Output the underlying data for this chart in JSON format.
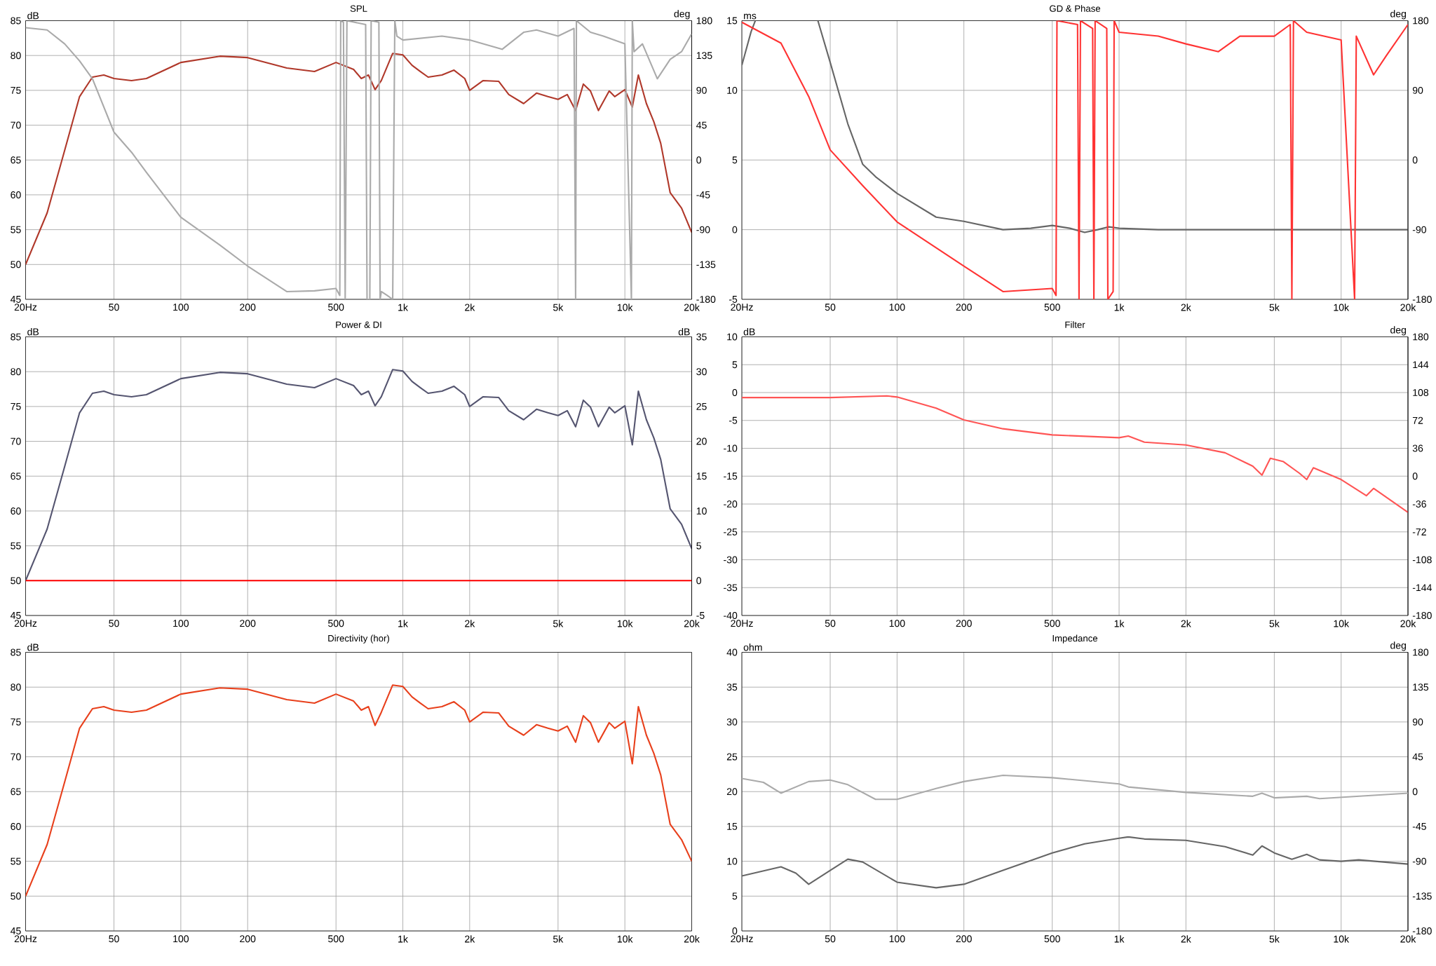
{
  "chart_data": [
    {
      "type": "line",
      "title": "SPL",
      "ylabel": "dB",
      "y2label": "deg",
      "log": "x",
      "grid": true,
      "xlim": [
        20,
        20000
      ],
      "ylim": [
        45,
        85
      ],
      "y2lim": [
        -180,
        180
      ],
      "xticks": [
        {
          "value": 20,
          "label": "20Hz"
        },
        50,
        100,
        200,
        500,
        {
          "value": 1000,
          "label": "1k"
        },
        {
          "value": 2000,
          "label": "2k"
        },
        {
          "value": 5000,
          "label": "5k"
        },
        {
          "value": 10000,
          "label": "10k"
        },
        {
          "value": 20000,
          "label": "20k"
        }
      ],
      "yticks": [
        45,
        50,
        55,
        60,
        65,
        70,
        75,
        80,
        85
      ],
      "y2ticks": [
        -180,
        -135,
        -90,
        -45,
        0,
        45,
        90,
        135,
        180
      ],
      "series": [
        {
          "color": "#b0382a",
          "x": [
            20,
            25,
            30,
            35,
            40,
            45,
            50,
            60,
            70,
            100,
            150,
            200,
            300,
            400,
            500,
            600,
            650,
            700,
            750,
            800,
            900,
            1000,
            1100,
            1200,
            1300,
            1500,
            1700,
            1900,
            2000,
            2300,
            2700,
            3000,
            3500,
            4000,
            4500,
            5000,
            5500,
            6000,
            6500,
            7000,
            7600,
            8500,
            9000,
            10000,
            10800,
            11500,
            12500,
            13500,
            14500,
            16000,
            18000,
            20000
          ],
          "values": [
            50.0,
            57.4,
            66.4,
            74.1,
            76.9,
            77.2,
            76.7,
            76.4,
            76.7,
            79.0,
            79.9,
            79.7,
            78.2,
            77.7,
            79.0,
            78.0,
            76.7,
            77.2,
            75.1,
            76.4,
            80.3,
            80.1,
            78.6,
            77.7,
            76.9,
            77.2,
            77.9,
            76.7,
            75.0,
            76.4,
            76.3,
            74.4,
            73.1,
            74.6,
            74.1,
            73.7,
            74.4,
            72.1,
            75.9,
            74.9,
            72.1,
            74.9,
            74.1,
            75.1,
            72.6,
            77.2,
            73.1,
            70.5,
            67.4,
            60.3,
            58.1,
            54.6
          ]
        },
        {
          "color": "#aaaaaa",
          "axis": "y2",
          "x": [
            20,
            25,
            30,
            35,
            40,
            50,
            60,
            70,
            100,
            150,
            200,
            300,
            400,
            500,
            520,
            525,
            540,
            550,
            560,
            680,
            690,
            710,
            720,
            780,
            790,
            800,
            850,
            900,
            920,
            940,
            1000,
            1500,
            2000,
            2800,
            3500,
            4000,
            5000,
            5900,
            6000,
            6050,
            7000,
            8000,
            10000,
            10700,
            10800,
            11000,
            12000,
            14000,
            16000,
            18000,
            20000
          ],
          "values": [
            171,
            168,
            150,
            128,
            105,
            36,
            10,
            -16,
            -74,
            -110,
            -137,
            -170,
            -169,
            -166,
            -175,
            180,
            178,
            -180,
            180,
            175,
            -180,
            -180,
            180,
            178,
            -180,
            -170,
            -175,
            -180,
            180,
            160,
            155,
            160,
            155,
            143,
            165,
            168,
            160,
            170,
            -180,
            180,
            165,
            160,
            150,
            -180,
            180,
            140,
            150,
            105,
            130,
            140,
            163
          ]
        }
      ]
    },
    {
      "type": "line",
      "title": "GD & Phase",
      "ylabel": "ms",
      "y2label": "deg",
      "log": "x",
      "grid": true,
      "xlim": [
        20,
        20000
      ],
      "ylim": [
        -5,
        15
      ],
      "y2lim": [
        -180,
        180
      ],
      "xticks": [
        {
          "value": 20,
          "label": "20Hz"
        },
        50,
        100,
        200,
        500,
        {
          "value": 1000,
          "label": "1k"
        },
        {
          "value": 2000,
          "label": "2k"
        },
        {
          "value": 5000,
          "label": "5k"
        },
        {
          "value": 10000,
          "label": "10k"
        },
        {
          "value": 20000,
          "label": "20k"
        }
      ],
      "yticks": [
        -5,
        0,
        5,
        10,
        15
      ],
      "y2ticks": [
        -180,
        -90,
        0,
        90,
        180
      ],
      "series": [
        {
          "color": "#666666",
          "x": [
            20,
            22,
            23,
            23.5,
            44,
            50,
            60,
            70,
            80,
            100,
            150,
            200,
            300,
            400,
            500,
            600,
            700,
            800,
            900,
            1000,
            1500,
            2000,
            5000,
            10000,
            20000
          ],
          "values": [
            11.8,
            14.2,
            15,
            null,
            15,
            12,
            7.6,
            4.7,
            3.8,
            2.6,
            0.9,
            0.6,
            0,
            0.1,
            0.3,
            0.1,
            -0.2,
            0,
            0.2,
            0.1,
            0,
            0,
            0,
            0,
            0
          ]
        },
        {
          "color": "#ff3333",
          "axis": "y2",
          "x": [
            20,
            30,
            40,
            50,
            70,
            100,
            200,
            300,
            500,
            520,
            525,
            650,
            660,
            670,
            760,
            770,
            780,
            880,
            890,
            940,
            950,
            1000,
            1500,
            2000,
            2800,
            3500,
            5000,
            5900,
            6000,
            6100,
            7000,
            10000,
            11500,
            11700,
            14000,
            16000,
            20000
          ],
          "values": [
            178,
            151,
            82,
            13,
            -33,
            -80,
            -137,
            -170,
            -166,
            -175,
            180,
            175,
            -180,
            180,
            170,
            -180,
            180,
            170,
            -180,
            -170,
            180,
            165,
            160,
            150,
            140,
            160,
            160,
            175,
            -180,
            180,
            165,
            155,
            -180,
            160,
            110,
            135,
            175
          ]
        }
      ]
    },
    {
      "type": "line",
      "title": "Power & DI",
      "ylabel": "dB",
      "y2label": "dB",
      "log": "x",
      "grid": true,
      "xlim": [
        20,
        20000
      ],
      "ylim": [
        45,
        85
      ],
      "y2lim": [
        -5,
        35
      ],
      "xticks": [
        {
          "value": 20,
          "label": "20Hz"
        },
        50,
        100,
        200,
        500,
        {
          "value": 1000,
          "label": "1k"
        },
        {
          "value": 2000,
          "label": "2k"
        },
        {
          "value": 5000,
          "label": "5k"
        },
        {
          "value": 10000,
          "label": "10k"
        },
        {
          "value": 20000,
          "label": "20k"
        }
      ],
      "yticks": [
        45,
        50,
        55,
        60,
        65,
        70,
        75,
        80,
        85
      ],
      "y2ticks": [
        -5,
        0,
        5,
        10,
        15,
        20,
        25,
        30,
        35
      ],
      "series": [
        {
          "color": "#555570",
          "x": [
            20,
            25,
            30,
            35,
            40,
            45,
            50,
            60,
            70,
            100,
            150,
            200,
            300,
            400,
            500,
            600,
            650,
            700,
            750,
            800,
            900,
            1000,
            1100,
            1200,
            1300,
            1500,
            1700,
            1900,
            2000,
            2300,
            2700,
            3000,
            3500,
            4000,
            4500,
            5000,
            5500,
            6000,
            6500,
            7000,
            7600,
            8500,
            9000,
            10000,
            10800,
            11500,
            12500,
            13500,
            14500,
            16000,
            18000,
            20000
          ],
          "values": [
            50.0,
            57.4,
            66.4,
            74.1,
            76.9,
            77.2,
            76.7,
            76.4,
            76.7,
            79.0,
            79.9,
            79.7,
            78.2,
            77.7,
            79.0,
            78.0,
            76.7,
            77.2,
            75.1,
            76.4,
            80.3,
            80.1,
            78.6,
            77.7,
            76.9,
            77.2,
            77.9,
            76.7,
            75.0,
            76.4,
            76.3,
            74.4,
            73.1,
            74.6,
            74.1,
            73.7,
            74.4,
            72.1,
            75.9,
            74.9,
            72.1,
            74.9,
            74.1,
            75.1,
            69.5,
            77.2,
            73.1,
            70.5,
            67.4,
            60.3,
            58.1,
            54.6
          ]
        },
        {
          "color": "#ff0000",
          "axis": "y2",
          "x": [
            20,
            20000
          ],
          "values": [
            0,
            0
          ]
        }
      ]
    },
    {
      "type": "line",
      "title": "Filter",
      "ylabel": "dB",
      "y2label": "deg",
      "log": "x",
      "grid": true,
      "xlim": [
        20,
        20000
      ],
      "ylim": [
        -40,
        10
      ],
      "y2lim": [
        -180,
        180
      ],
      "xticks": [
        {
          "value": 20,
          "label": "20Hz"
        },
        50,
        100,
        200,
        500,
        {
          "value": 1000,
          "label": "1k"
        },
        {
          "value": 2000,
          "label": "2k"
        },
        {
          "value": 5000,
          "label": "5k"
        },
        {
          "value": 10000,
          "label": "10k"
        },
        {
          "value": 20000,
          "label": "20k"
        }
      ],
      "yticks": [
        -40,
        -35,
        -30,
        -25,
        -20,
        -15,
        -10,
        -5,
        0,
        5,
        10
      ],
      "y2ticks": [
        -180,
        -144,
        -108,
        -72,
        -36,
        0,
        36,
        72,
        108,
        144,
        180
      ],
      "series": [
        {
          "color": "#ff5555",
          "x": [
            20,
            50,
            90,
            100,
            150,
            200,
            300,
            500,
            1000,
            1100,
            1300,
            2000,
            3000,
            4000,
            4400,
            4800,
            5500,
            6500,
            7000,
            7500,
            10000,
            13000,
            14000,
            20000
          ],
          "values": [
            -0.9,
            -0.9,
            -0.6,
            -0.8,
            -2.8,
            -4.9,
            -6.5,
            -7.6,
            -8.1,
            -7.8,
            -8.9,
            -9.4,
            -10.8,
            -13.2,
            -14.8,
            -11.8,
            -12.4,
            -14.5,
            -15.6,
            -13.5,
            -15.6,
            -18.5,
            -17.2,
            -21.5
          ]
        }
      ]
    },
    {
      "type": "line",
      "title": "Directivity (hor)",
      "ylabel": "dB",
      "log": "x",
      "grid": true,
      "xlim": [
        20,
        20000
      ],
      "ylim": [
        45,
        85
      ],
      "xticks": [
        {
          "value": 20,
          "label": "20Hz"
        },
        50,
        100,
        200,
        500,
        {
          "value": 1000,
          "label": "1k"
        },
        {
          "value": 2000,
          "label": "2k"
        },
        {
          "value": 5000,
          "label": "5k"
        },
        {
          "value": 10000,
          "label": "10k"
        },
        {
          "value": 20000,
          "label": "20k"
        }
      ],
      "yticks": [
        45,
        50,
        55,
        60,
        65,
        70,
        75,
        80,
        85
      ],
      "series": [
        {
          "color": "#e8401c",
          "x": [
            20,
            25,
            30,
            35,
            40,
            45,
            50,
            60,
            70,
            100,
            150,
            200,
            300,
            400,
            500,
            600,
            650,
            700,
            750,
            800,
            900,
            1000,
            1100,
            1200,
            1300,
            1500,
            1700,
            1900,
            2000,
            2300,
            2700,
            3000,
            3500,
            4000,
            4500,
            5000,
            5500,
            6000,
            6500,
            7000,
            7600,
            8500,
            9000,
            10000,
            10800,
            11500,
            12500,
            13500,
            14500,
            16000,
            18000,
            20000
          ],
          "values": [
            50.0,
            57.4,
            66.4,
            74.1,
            76.9,
            77.2,
            76.7,
            76.4,
            76.7,
            79.0,
            79.9,
            79.7,
            78.2,
            77.7,
            79.0,
            78.0,
            76.7,
            77.2,
            74.5,
            76.4,
            80.3,
            80.1,
            78.6,
            77.7,
            76.9,
            77.2,
            77.9,
            76.7,
            75.0,
            76.4,
            76.3,
            74.4,
            73.1,
            74.6,
            74.1,
            73.7,
            74.4,
            72.1,
            75.9,
            74.9,
            72.1,
            74.9,
            74.1,
            75.1,
            69.0,
            77.2,
            73.1,
            70.5,
            67.4,
            60.3,
            58.1,
            55.0
          ]
        }
      ]
    },
    {
      "type": "line",
      "title": "Impedance",
      "ylabel": "ohm",
      "y2label": "deg",
      "log": "x",
      "grid": true,
      "xlim": [
        20,
        20000
      ],
      "ylim": [
        0,
        40
      ],
      "y2lim": [
        -180,
        180
      ],
      "xticks": [
        {
          "value": 20,
          "label": "20Hz"
        },
        50,
        100,
        200,
        500,
        {
          "value": 1000,
          "label": "1k"
        },
        {
          "value": 2000,
          "label": "2k"
        },
        {
          "value": 5000,
          "label": "5k"
        },
        {
          "value": 10000,
          "label": "10k"
        },
        {
          "value": 20000,
          "label": "20k"
        }
      ],
      "yticks": [
        0,
        5,
        10,
        15,
        20,
        25,
        30,
        35,
        40
      ],
      "y2ticks": [
        -180,
        -135,
        -90,
        -45,
        0,
        45,
        90,
        135,
        180
      ],
      "series": [
        {
          "color": "#666666",
          "x": [
            20,
            30,
            35,
            40,
            50,
            60,
            70,
            100,
            150,
            200,
            300,
            500,
            700,
            1000,
            1100,
            1300,
            2000,
            3000,
            4000,
            4400,
            5000,
            6000,
            7000,
            8000,
            10000,
            12000,
            20000
          ],
          "values": [
            7.9,
            9.2,
            8.3,
            6.7,
            8.7,
            10.3,
            9.9,
            7.0,
            6.2,
            6.7,
            8.7,
            11.2,
            12.5,
            13.3,
            13.5,
            13.2,
            13.0,
            12.1,
            10.9,
            12.2,
            11.2,
            10.3,
            11.0,
            10.2,
            10.0,
            10.2,
            9.6
          ]
        },
        {
          "color": "#aaaaaa",
          "axis": "y2",
          "x": [
            20,
            25,
            30,
            40,
            50,
            60,
            80,
            100,
            150,
            200,
            300,
            500,
            1000,
            1100,
            2000,
            4000,
            4400,
            5000,
            7000,
            8000,
            20000
          ],
          "values": [
            17,
            12,
            -2,
            13,
            15,
            9,
            -10,
            -10,
            4,
            13,
            21,
            18,
            10,
            6,
            -1,
            -6,
            -2,
            -8,
            -6,
            -9,
            -2
          ]
        }
      ]
    }
  ]
}
